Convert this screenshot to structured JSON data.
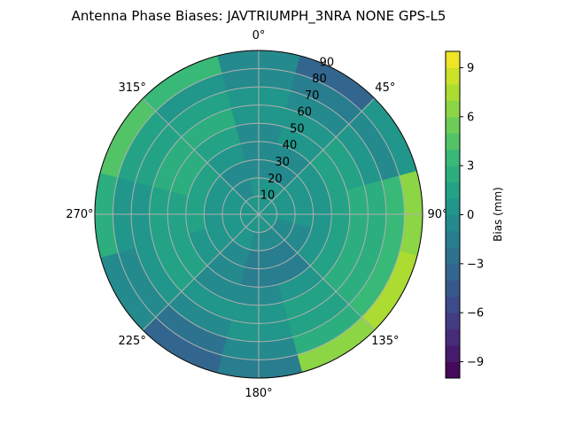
{
  "chart_data": {
    "type": "heatmap",
    "projection": "polar",
    "title": "Antenna Phase Biases: JAVTRIUMPH_3NRA NONE GPS-L5",
    "theta_direction": "clockwise",
    "theta_zero": "top",
    "theta_ticks": [
      "0°",
      "45°",
      "90°",
      "135°",
      "180°",
      "225°",
      "270°",
      "315°"
    ],
    "r_ticks": [
      "10",
      "20",
      "30",
      "40",
      "50",
      "60",
      "70",
      "80",
      "90"
    ],
    "rlim": [
      0,
      90
    ],
    "grid": true,
    "colormap": "viridis",
    "colorbar": {
      "label": "Bias (mm)",
      "range": [
        -10,
        10
      ],
      "level_step": 1,
      "ticks": [
        "9",
        "6",
        "3",
        "0",
        "−3",
        "−6",
        "−9"
      ],
      "tick_values": [
        9,
        6,
        3,
        0,
        -3,
        -6,
        -9
      ]
    },
    "azimuths_deg": [
      0,
      30,
      60,
      90,
      120,
      150,
      180,
      210,
      240,
      270,
      300,
      330
    ],
    "zenith_ring_centers_deg": [
      5,
      15,
      25,
      35,
      45,
      55,
      65,
      75,
      85
    ],
    "values_mm": [
      [
        0,
        0,
        -1,
        -1,
        -1,
        0,
        0,
        -1,
        -1
      ],
      [
        0,
        0,
        -1,
        -1,
        0,
        0,
        -1,
        -2,
        -4
      ],
      [
        0,
        0,
        0,
        0,
        1,
        1,
        0,
        -1,
        0
      ],
      [
        0,
        0,
        0,
        0,
        1,
        2,
        2,
        3,
        6
      ],
      [
        0,
        -1,
        -1,
        0,
        1,
        2,
        2,
        3,
        7
      ],
      [
        0,
        -1,
        -2,
        -2,
        0,
        1,
        1,
        2,
        6
      ],
      [
        0,
        -1,
        -2,
        -2,
        -1,
        0,
        0,
        -1,
        -2
      ],
      [
        0,
        0,
        -1,
        -1,
        -1,
        0,
        -1,
        -3,
        -4
      ],
      [
        0,
        0,
        0,
        0,
        1,
        1,
        0,
        -1,
        -1
      ],
      [
        0,
        0,
        0,
        1,
        1,
        1,
        0,
        0,
        2
      ],
      [
        0,
        0,
        0,
        1,
        2,
        2,
        1,
        1,
        4
      ],
      [
        0,
        -1,
        -1,
        0,
        1,
        2,
        1,
        0,
        3
      ]
    ]
  }
}
